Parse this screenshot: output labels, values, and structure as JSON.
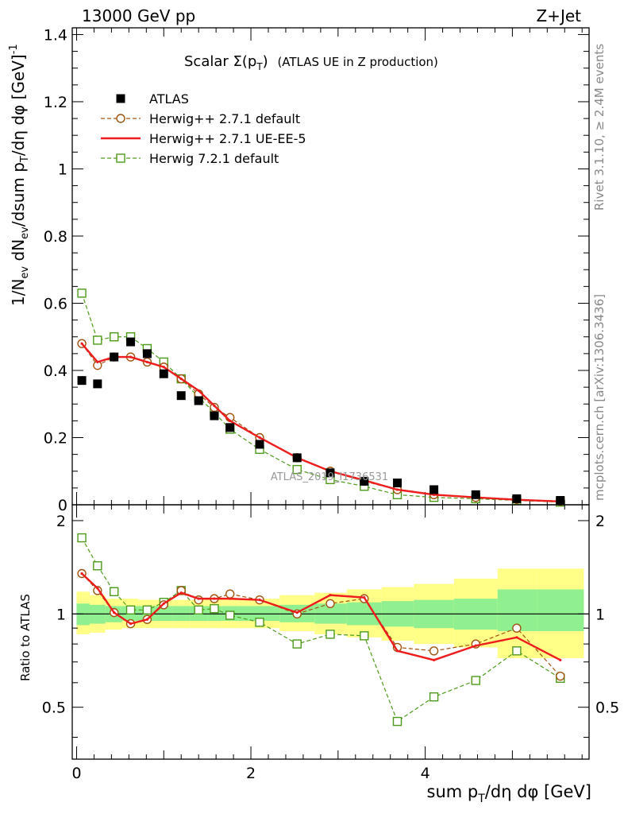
{
  "header": {
    "left": "13000 GeV pp",
    "right": "Z+Jet"
  },
  "plot_title": {
    "symbol": "Scalar Σ(p",
    "sub": "T",
    "close": ")",
    "desc": "(ATLAS UE in Z production)"
  },
  "side_labels": {
    "rivet": "Rivet 3.1.10, ≥ 2.4M events",
    "mcplots": "mcplots.cern.ch [arXiv:1306.3436]"
  },
  "watermark": "ATLAS_2019_I1736531",
  "chart_data": [
    {
      "type": "scatter",
      "panel": "main",
      "ylabel": "1/N_ev dN_ev/dsum p_T/dη dφ [GeV]^-1",
      "ylim": [
        0,
        1.42
      ],
      "xlim": [
        -0.05,
        5.88
      ],
      "x": [
        0.06,
        0.24,
        0.43,
        0.62,
        0.81,
        1.0,
        1.2,
        1.4,
        1.58,
        1.76,
        2.1,
        2.53,
        2.91,
        3.3,
        3.68,
        4.1,
        4.58,
        5.05,
        5.55
      ],
      "yticks": [
        "0",
        "0.2",
        "0.4",
        "0.6",
        "0.8",
        "1",
        "1.2",
        "1.4"
      ],
      "ytick_values": [
        0,
        0.2,
        0.4,
        0.6,
        0.8,
        1.0,
        1.2,
        1.4
      ],
      "series": [
        {
          "name": "ATLAS",
          "color": "#000000",
          "values": [
            0.37,
            0.36,
            0.44,
            0.485,
            0.45,
            0.39,
            0.325,
            0.31,
            0.265,
            0.23,
            0.18,
            0.14,
            0.095,
            0.07,
            0.065,
            0.045,
            0.03,
            0.018,
            0.013
          ]
        },
        {
          "name": "Herwig++ 2.7.1 default",
          "color": "#a0520d",
          "values": [
            0.48,
            0.415,
            0.44,
            0.44,
            0.425,
            0.41,
            0.375,
            0.33,
            0.29,
            0.26,
            0.2,
            0.14,
            0.1,
            0.07,
            0.045,
            0.03,
            0.022,
            0.016,
            0.01
          ]
        },
        {
          "name": "Herwig++ 2.7.1 UE-EE-5",
          "color": "#ee1c1c",
          "values": [
            0.48,
            0.425,
            0.44,
            0.44,
            0.425,
            0.41,
            0.375,
            0.34,
            0.295,
            0.25,
            0.2,
            0.14,
            0.1,
            0.073,
            0.045,
            0.03,
            0.022,
            0.015,
            0.01
          ]
        },
        {
          "name": "Herwig 7.2.1 default",
          "color": "#4d9a1a",
          "values": [
            0.63,
            0.49,
            0.5,
            0.5,
            0.465,
            0.425,
            0.375,
            0.32,
            0.275,
            0.225,
            0.165,
            0.105,
            0.075,
            0.055,
            0.03,
            0.022,
            0.018,
            0.013,
            0.008
          ]
        }
      ]
    },
    {
      "type": "line",
      "panel": "ratio",
      "ylabel": "Ratio to ATLAS",
      "xlabel": "sum p_T/dη dφ [GeV]",
      "ylim": [
        0.34,
        2.25
      ],
      "xlim": [
        -0.05,
        5.88
      ],
      "x": [
        0.06,
        0.24,
        0.43,
        0.62,
        0.81,
        1.0,
        1.2,
        1.4,
        1.58,
        1.76,
        2.1,
        2.53,
        2.91,
        3.3,
        3.68,
        4.1,
        4.58,
        5.05,
        5.55
      ],
      "xticks": [
        "0",
        "2",
        "4"
      ],
      "xtick_values": [
        0,
        2,
        4
      ],
      "yticks": [
        "0.5",
        "1",
        "2"
      ],
      "ytick_values": [
        0.5,
        1,
        2
      ],
      "band_edges": [
        0.0,
        0.15,
        0.33,
        0.52,
        0.71,
        0.9,
        1.1,
        1.3,
        1.5,
        1.67,
        1.86,
        2.33,
        2.73,
        3.1,
        3.5,
        3.87,
        4.33,
        4.83,
        5.28,
        5.82
      ],
      "band_inner": [
        [
          0.92,
          1.08
        ],
        [
          0.93,
          1.07
        ],
        [
          0.94,
          1.06
        ],
        [
          0.95,
          1.06
        ],
        [
          0.95,
          1.06
        ],
        [
          0.95,
          1.06
        ],
        [
          0.95,
          1.06
        ],
        [
          0.95,
          1.06
        ],
        [
          0.95,
          1.06
        ],
        [
          0.95,
          1.06
        ],
        [
          0.95,
          1.06
        ],
        [
          0.94,
          1.07
        ],
        [
          0.93,
          1.08
        ],
        [
          0.92,
          1.09
        ],
        [
          0.91,
          1.1
        ],
        [
          0.9,
          1.11
        ],
        [
          0.89,
          1.12
        ],
        [
          0.88,
          1.2
        ],
        [
          0.88,
          1.2
        ]
      ],
      "band_outer": [
        [
          0.86,
          1.18
        ],
        [
          0.87,
          1.15
        ],
        [
          0.89,
          1.12
        ],
        [
          0.9,
          1.12
        ],
        [
          0.9,
          1.11
        ],
        [
          0.9,
          1.11
        ],
        [
          0.9,
          1.11
        ],
        [
          0.9,
          1.11
        ],
        [
          0.9,
          1.12
        ],
        [
          0.9,
          1.12
        ],
        [
          0.9,
          1.12
        ],
        [
          0.88,
          1.15
        ],
        [
          0.86,
          1.17
        ],
        [
          0.84,
          1.2
        ],
        [
          0.82,
          1.22
        ],
        [
          0.8,
          1.25
        ],
        [
          0.78,
          1.3
        ],
        [
          0.72,
          1.4
        ],
        [
          0.72,
          1.4
        ]
      ],
      "series": [
        {
          "name": "Herwig++ 2.7.1 default",
          "color": "#a0520d",
          "values": [
            1.35,
            1.19,
            1.01,
            0.93,
            0.96,
            1.07,
            1.19,
            1.11,
            1.12,
            1.16,
            1.11,
            1.0,
            1.08,
            1.12,
            0.78,
            0.76,
            0.8,
            0.9,
            0.63
          ]
        },
        {
          "name": "Herwig++ 2.7.1 UE-EE-5",
          "color": "#ee1c1c",
          "values": [
            1.35,
            1.21,
            1.01,
            0.93,
            0.96,
            1.08,
            1.17,
            1.12,
            1.12,
            1.12,
            1.11,
            1.01,
            1.15,
            1.13,
            0.76,
            0.71,
            0.79,
            0.84,
            0.71
          ]
        },
        {
          "name": "Herwig 7.2.1 default",
          "color": "#4d9a1a",
          "values": [
            1.76,
            1.43,
            1.18,
            1.03,
            1.03,
            1.09,
            1.19,
            1.03,
            1.04,
            0.99,
            0.94,
            0.8,
            0.86,
            0.85,
            0.45,
            0.54,
            0.61,
            0.76,
            0.62
          ]
        }
      ]
    }
  ]
}
